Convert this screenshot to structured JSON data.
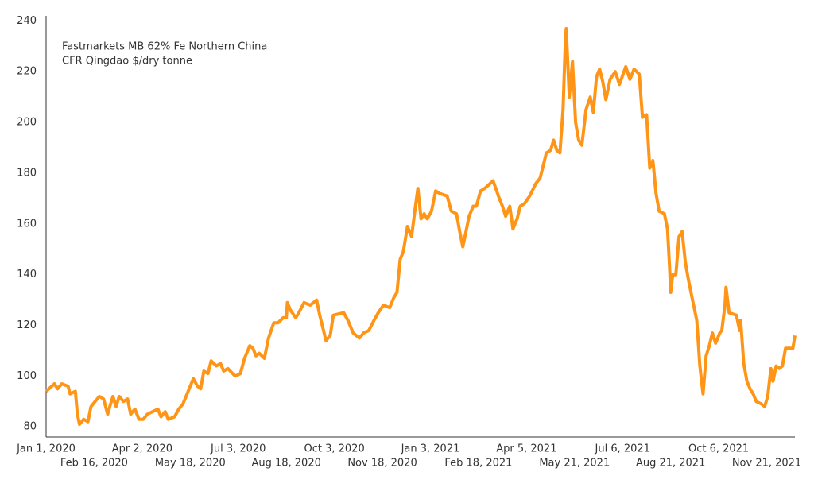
{
  "chart_data": {
    "type": "line",
    "annotation": [
      "Fastmarkets MB 62% Fe Northern China",
      "CFR Qingdao $/dry tonne"
    ],
    "color": "#ff9516",
    "x": [
      "2020-01-01",
      "2020-01-09",
      "2020-01-12",
      "2020-01-16",
      "2020-01-22",
      "2020-01-24",
      "2020-01-29",
      "2020-01-31",
      "2020-02-02",
      "2020-02-06",
      "2020-02-10",
      "2020-02-13",
      "2020-02-17",
      "2020-02-21",
      "2020-02-25",
      "2020-02-29",
      "2020-03-02",
      "2020-03-05",
      "2020-03-08",
      "2020-03-11",
      "2020-03-15",
      "2020-03-19",
      "2020-03-22",
      "2020-03-26",
      "2020-03-30",
      "2020-04-03",
      "2020-04-07",
      "2020-04-12",
      "2020-04-17",
      "2020-04-20",
      "2020-04-24",
      "2020-04-27",
      "2020-05-03",
      "2020-05-07",
      "2020-05-11",
      "2020-05-17",
      "2020-05-21",
      "2020-05-25",
      "2020-05-28",
      "2020-05-31",
      "2020-06-04",
      "2020-06-07",
      "2020-06-12",
      "2020-06-16",
      "2020-06-19",
      "2020-06-23",
      "2020-06-30",
      "2020-07-05",
      "2020-07-09",
      "2020-07-14",
      "2020-07-17",
      "2020-07-20",
      "2020-07-23",
      "2020-07-28",
      "2020-08-01",
      "2020-08-06",
      "2020-08-10",
      "2020-08-15",
      "2020-08-18",
      "2020-08-19",
      "2020-08-22",
      "2020-08-27",
      "2020-08-30",
      "2020-09-04",
      "2020-09-10",
      "2020-09-16",
      "2020-09-19",
      "2020-09-22",
      "2020-09-25",
      "2020-09-29",
      "2020-10-02",
      "2020-10-12",
      "2020-10-16",
      "2020-10-21",
      "2020-10-27",
      "2020-10-31",
      "2020-11-05",
      "2020-11-10",
      "2020-11-14",
      "2020-11-19",
      "2020-11-25",
      "2020-11-29",
      "2020-12-02",
      "2020-12-05",
      "2020-12-08",
      "2020-12-12",
      "2020-12-16",
      "2020-12-19",
      "2020-12-22",
      "2020-12-25",
      "2020-12-28",
      "2020-12-31",
      "2021-01-04",
      "2021-01-08",
      "2021-01-12",
      "2021-01-19",
      "2021-01-23",
      "2021-01-28",
      "2021-01-31",
      "2021-02-03",
      "2021-02-06",
      "2021-02-09",
      "2021-02-13",
      "2021-02-16",
      "2021-02-20",
      "2021-02-24",
      "2021-03-04",
      "2021-03-10",
      "2021-03-13",
      "2021-03-16",
      "2021-03-20",
      "2021-03-23",
      "2021-03-27",
      "2021-03-30",
      "2021-04-03",
      "2021-04-08",
      "2021-04-14",
      "2021-04-18",
      "2021-04-21",
      "2021-04-24",
      "2021-04-28",
      "2021-05-01",
      "2021-05-04",
      "2021-05-07",
      "2021-05-10",
      "2021-05-12",
      "2021-05-13",
      "2021-05-16",
      "2021-05-19",
      "2021-05-22",
      "2021-05-25",
      "2021-05-28",
      "2021-06-01",
      "2021-06-05",
      "2021-06-08",
      "2021-06-11",
      "2021-06-14",
      "2021-06-17",
      "2021-06-20",
      "2021-06-24",
      "2021-06-29",
      "2021-07-03",
      "2021-07-09",
      "2021-07-13",
      "2021-07-17",
      "2021-07-22",
      "2021-07-25",
      "2021-07-29",
      "2021-08-01",
      "2021-08-04",
      "2021-08-07",
      "2021-08-10",
      "2021-08-15",
      "2021-08-18",
      "2021-08-20",
      "2021-08-21",
      "2021-08-23",
      "2021-08-26",
      "2021-08-29",
      "2021-09-01",
      "2021-09-04",
      "2021-09-07",
      "2021-09-11",
      "2021-09-15",
      "2021-09-18",
      "2021-09-21",
      "2021-09-24",
      "2021-09-27",
      "2021-09-30",
      "2021-10-03",
      "2021-10-07",
      "2021-10-09",
      "2021-10-12",
      "2021-10-13",
      "2021-10-16",
      "2021-10-23",
      "2021-10-26",
      "2021-10-27",
      "2021-10-30",
      "2021-11-02",
      "2021-11-05",
      "2021-11-08",
      "2021-11-11",
      "2021-11-16",
      "2021-11-19",
      "2021-11-22",
      "2021-11-23",
      "2021-11-25",
      "2021-11-27",
      "2021-11-30",
      "2021-12-03",
      "2021-12-06",
      "2021-12-09",
      "2021-12-16",
      "2021-12-18"
    ],
    "values": [
      94,
      97,
      95,
      97,
      96,
      93,
      94,
      85,
      81,
      83,
      82,
      88,
      90,
      92,
      91,
      85,
      88,
      92,
      88,
      92,
      90,
      91,
      85,
      87,
      83,
      83,
      85,
      86,
      87,
      84,
      86,
      83,
      84,
      87,
      89,
      95,
      99,
      96,
      95,
      102,
      101,
      106,
      104,
      105,
      102,
      103,
      100,
      101,
      107,
      112,
      111,
      108,
      109,
      107,
      115,
      121,
      121,
      123,
      123,
      129,
      126,
      123,
      125,
      129,
      128,
      130,
      124,
      119,
      114,
      116,
      124,
      125,
      122,
      117,
      115,
      117,
      118,
      122,
      125,
      128,
      127,
      131,
      133,
      146,
      149,
      159,
      155,
      165,
      174,
      162,
      164,
      162,
      165,
      173,
      172,
      171,
      165,
      164,
      157,
      151,
      157,
      163,
      167,
      167,
      173,
      174,
      177,
      170,
      167,
      163,
      167,
      158,
      162,
      167,
      168,
      171,
      176,
      178,
      183,
      188,
      189,
      193,
      189,
      188,
      205,
      230,
      237,
      210,
      224,
      200,
      193,
      191,
      205,
      210,
      204,
      218,
      221,
      216,
      209,
      217,
      220,
      215,
      222,
      217,
      221,
      219,
      202,
      203,
      182,
      185,
      172,
      165,
      164,
      158,
      143,
      133,
      140,
      140,
      155,
      157,
      145,
      138,
      130,
      122,
      104,
      93,
      108,
      112,
      117,
      113,
      117,
      118,
      128,
      135,
      125,
      124,
      118,
      122,
      105,
      98,
      95,
      93,
      90,
      89,
      88,
      92,
      96,
      103,
      98,
      104,
      103,
      104,
      111,
      111,
      116
    ],
    "xlim": [
      "2020-01-01",
      "2021-12-18"
    ],
    "xticks": [
      {
        "value": "2020-01-01",
        "label": "Jan 1, 2020"
      },
      {
        "value": "2020-02-16",
        "label": "Feb 16, 2020"
      },
      {
        "value": "2020-04-02",
        "label": "Apr 2, 2020"
      },
      {
        "value": "2020-05-18",
        "label": "May 18, 2020"
      },
      {
        "value": "2020-07-03",
        "label": "Jul 3, 2020"
      },
      {
        "value": "2020-08-18",
        "label": "Aug 18, 2020"
      },
      {
        "value": "2020-10-03",
        "label": "Oct 3, 2020"
      },
      {
        "value": "2020-11-18",
        "label": "Nov 18, 2020"
      },
      {
        "value": "2021-01-03",
        "label": "Jan 3, 2021"
      },
      {
        "value": "2021-02-18",
        "label": "Feb 18, 2021"
      },
      {
        "value": "2021-04-05",
        "label": "Apr 5, 2021"
      },
      {
        "value": "2021-05-21",
        "label": "May 21, 2021"
      },
      {
        "value": "2021-07-06",
        "label": "Jul 6, 2021"
      },
      {
        "value": "2021-08-21",
        "label": "Aug 21, 2021"
      },
      {
        "value": "2021-10-06",
        "label": "Oct 6, 2021"
      },
      {
        "value": "2021-11-21",
        "label": "Nov 21, 2021"
      }
    ],
    "ylim": [
      76,
      242
    ],
    "yticks": [
      80,
      100,
      120,
      140,
      160,
      180,
      200,
      220,
      240
    ],
    "grid": false
  }
}
